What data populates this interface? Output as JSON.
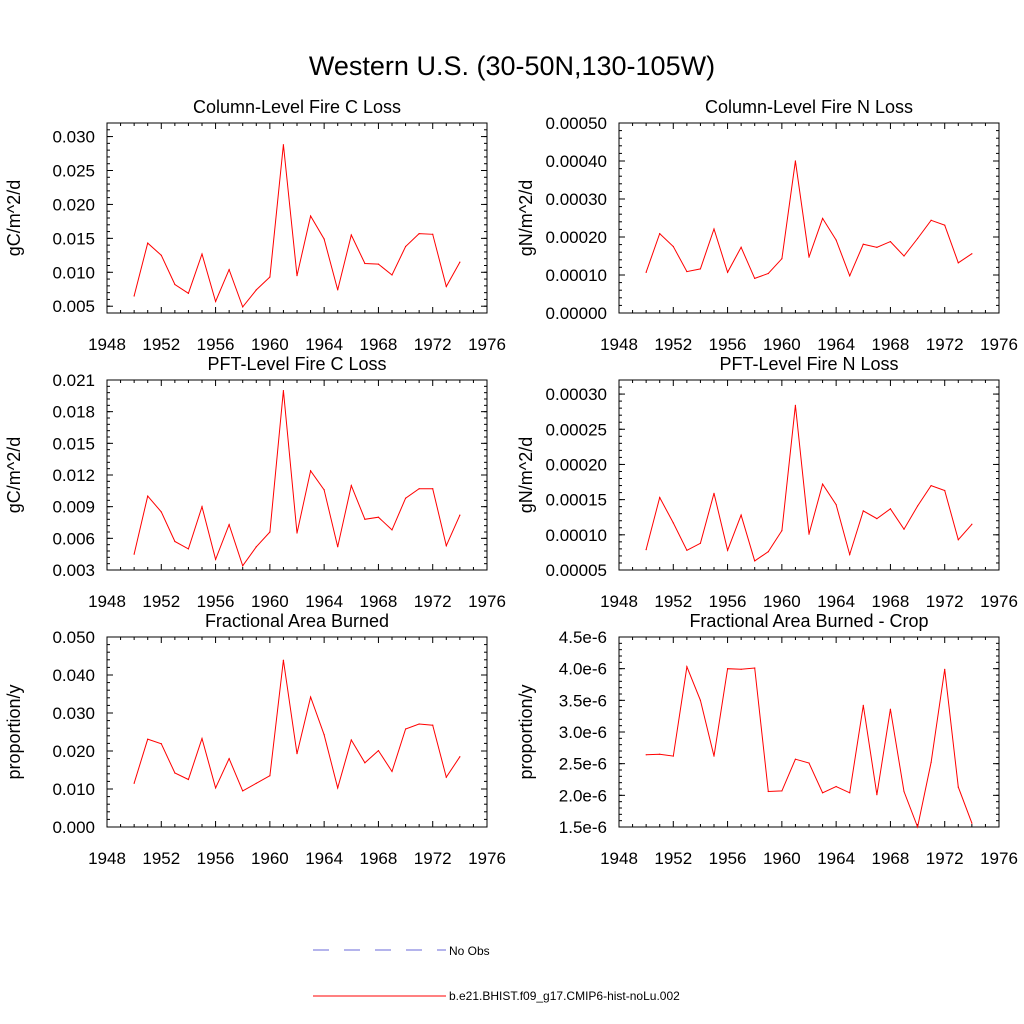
{
  "figure": {
    "title": "Western U.S. (30-50N,130-105W)",
    "legend": [
      {
        "label": "No Obs",
        "color": "#6a6ad8",
        "dash": true
      },
      {
        "label": "b.e21.BHIST.f09_g17.CMIP6-hist-noLu.002",
        "color": "#ff0000",
        "dash": false
      }
    ]
  },
  "chart_data": [
    {
      "type": "line",
      "title": "Column-Level Fire C Loss",
      "ylabel": "gC/m^2/d",
      "xlim": [
        1948,
        1976
      ],
      "ylim": [
        0.004,
        0.032
      ],
      "xticks": [
        "1948",
        "1952",
        "1956",
        "1960",
        "1964",
        "1968",
        "1972",
        "1976"
      ],
      "yticks": [
        "0.005",
        "0.010",
        "0.015",
        "0.020",
        "0.025",
        "0.030"
      ],
      "series": [
        {
          "color": "#ff0000",
          "x": [
            1950,
            1951,
            1952,
            1953,
            1954,
            1955,
            1956,
            1957,
            1958,
            1959,
            1960,
            1961,
            1962,
            1963,
            1964,
            1965,
            1966,
            1967,
            1968,
            1969,
            1970,
            1971,
            1972,
            1973,
            1974
          ],
          "values": [
            0.0065,
            0.0143,
            0.0125,
            0.0082,
            0.0069,
            0.0127,
            0.0057,
            0.0104,
            0.0049,
            0.0074,
            0.0093,
            0.0288,
            0.0095,
            0.0183,
            0.0149,
            0.0074,
            0.0155,
            0.0113,
            0.0112,
            0.0096,
            0.0138,
            0.0157,
            0.0156,
            0.0079,
            0.0115
          ]
        }
      ]
    },
    {
      "type": "line",
      "title": "Column-Level Fire N Loss",
      "ylabel": "gN/m^2/d",
      "xlim": [
        1948,
        1976
      ],
      "ylim": [
        0.0,
        0.0005
      ],
      "xticks": [
        "1948",
        "1952",
        "1956",
        "1960",
        "1964",
        "1968",
        "1972",
        "1976"
      ],
      "yticks": [
        "0.00000",
        "0.00010",
        "0.00020",
        "0.00030",
        "0.00040",
        "0.00050"
      ],
      "series": [
        {
          "color": "#ff0000",
          "x": [
            1950,
            1951,
            1952,
            1953,
            1954,
            1955,
            1956,
            1957,
            1958,
            1959,
            1960,
            1961,
            1962,
            1963,
            1964,
            1965,
            1966,
            1967,
            1968,
            1969,
            1970,
            1971,
            1972,
            1973,
            1974
          ],
          "values": [
            0.000107,
            0.000209,
            0.000175,
            0.000109,
            0.000116,
            0.000221,
            0.000107,
            0.000173,
            9.1e-05,
            0.000104,
            0.000143,
            0.0004,
            0.000147,
            0.000249,
            0.000192,
            9.8e-05,
            0.000181,
            0.000173,
            0.000188,
            0.00015,
            0.000196,
            0.000244,
            0.000231,
            0.000132,
            0.000156
          ]
        }
      ]
    },
    {
      "type": "line",
      "title": "PFT-Level Fire C Loss",
      "ylabel": "gC/m^2/d",
      "xlim": [
        1948,
        1976
      ],
      "ylim": [
        0.003,
        0.021
      ],
      "xticks": [
        "1948",
        "1952",
        "1956",
        "1960",
        "1964",
        "1968",
        "1972",
        "1976"
      ],
      "yticks": [
        "0.003",
        "0.006",
        "0.009",
        "0.012",
        "0.015",
        "0.018",
        "0.021"
      ],
      "series": [
        {
          "color": "#ff0000",
          "x": [
            1950,
            1951,
            1952,
            1953,
            1954,
            1955,
            1956,
            1957,
            1958,
            1959,
            1960,
            1961,
            1962,
            1963,
            1964,
            1965,
            1966,
            1967,
            1968,
            1969,
            1970,
            1971,
            1972,
            1973,
            1974
          ],
          "values": [
            0.0045,
            0.01,
            0.0085,
            0.0057,
            0.005,
            0.009,
            0.004,
            0.0073,
            0.0034,
            0.0052,
            0.0066,
            0.02,
            0.0065,
            0.0124,
            0.0106,
            0.0052,
            0.011,
            0.0078,
            0.008,
            0.0068,
            0.0098,
            0.0107,
            0.0107,
            0.0053,
            0.0082
          ]
        }
      ]
    },
    {
      "type": "line",
      "title": "PFT-Level Fire N Loss",
      "ylabel": "gN/m^2/d",
      "xlim": [
        1948,
        1976
      ],
      "ylim": [
        5e-05,
        0.00032
      ],
      "xticks": [
        "1948",
        "1952",
        "1956",
        "1960",
        "1964",
        "1968",
        "1972",
        "1976"
      ],
      "yticks": [
        "0.00005",
        "0.00010",
        "0.00015",
        "0.00020",
        "0.00025",
        "0.00030"
      ],
      "series": [
        {
          "color": "#ff0000",
          "x": [
            1950,
            1951,
            1952,
            1953,
            1954,
            1955,
            1956,
            1957,
            1958,
            1959,
            1960,
            1961,
            1962,
            1963,
            1964,
            1965,
            1966,
            1967,
            1968,
            1969,
            1970,
            1971,
            1972,
            1973,
            1974
          ],
          "values": [
            7.9e-05,
            0.000153,
            0.000117,
            7.8e-05,
            8.8e-05,
            0.000159,
            7.8e-05,
            0.000128,
            6.3e-05,
            7.6e-05,
            0.000106,
            0.000284,
            0.000101,
            0.000172,
            0.000143,
            7.2e-05,
            0.000134,
            0.000123,
            0.000137,
            0.000108,
            0.000141,
            0.00017,
            0.000163,
            9.3e-05,
            0.000115
          ]
        }
      ]
    },
    {
      "type": "line",
      "title": "Fractional Area Burned",
      "ylabel": "proportion/y",
      "xlim": [
        1948,
        1976
      ],
      "ylim": [
        0.0,
        0.05
      ],
      "xticks": [
        "1948",
        "1952",
        "1956",
        "1960",
        "1964",
        "1968",
        "1972",
        "1976"
      ],
      "yticks": [
        "0.000",
        "0.010",
        "0.020",
        "0.030",
        "0.040",
        "0.050"
      ],
      "series": [
        {
          "color": "#ff0000",
          "x": [
            1950,
            1951,
            1952,
            1953,
            1954,
            1955,
            1956,
            1957,
            1958,
            1959,
            1960,
            1961,
            1962,
            1963,
            1964,
            1965,
            1966,
            1967,
            1968,
            1969,
            1970,
            1971,
            1972,
            1973,
            1974
          ],
          "values": [
            0.0115,
            0.0231,
            0.0219,
            0.0142,
            0.0125,
            0.0233,
            0.0103,
            0.018,
            0.0095,
            0.0115,
            0.0135,
            0.0439,
            0.0193,
            0.0342,
            0.0243,
            0.0103,
            0.0229,
            0.0169,
            0.0201,
            0.0146,
            0.0258,
            0.0271,
            0.0268,
            0.0131,
            0.0185
          ]
        }
      ]
    },
    {
      "type": "line",
      "title": "Fractional Area Burned - Crop",
      "ylabel": "proportion/y",
      "xlim": [
        1948,
        1976
      ],
      "ylim": [
        1.5e-06,
        4.5e-06
      ],
      "xticks": [
        "1948",
        "1952",
        "1956",
        "1960",
        "1964",
        "1968",
        "1972",
        "1976"
      ],
      "yticks": [
        "1.5e-6",
        "2.0e-6",
        "2.5e-6",
        "3.0e-6",
        "3.5e-6",
        "4.0e-6",
        "4.5e-6"
      ],
      "series": [
        {
          "color": "#ff0000",
          "x": [
            1950,
            1951,
            1952,
            1953,
            1954,
            1955,
            1956,
            1957,
            1958,
            1959,
            1960,
            1961,
            1962,
            1963,
            1964,
            1965,
            1966,
            1967,
            1968,
            1969,
            1970,
            1971,
            1972,
            1973,
            1974
          ],
          "values": [
            2.64e-06,
            2.65e-06,
            2.62e-06,
            4.03e-06,
            3.5e-06,
            2.62e-06,
            4e-06,
            3.99e-06,
            4.01e-06,
            2.06e-06,
            2.07e-06,
            2.57e-06,
            2.51e-06,
            2.04e-06,
            2.14e-06,
            2.04e-06,
            3.42e-06,
            2.01e-06,
            3.36e-06,
            2.06e-06,
            1.5e-06,
            2.52e-06,
            3.99e-06,
            2.13e-06,
            1.56e-06
          ]
        }
      ]
    }
  ]
}
